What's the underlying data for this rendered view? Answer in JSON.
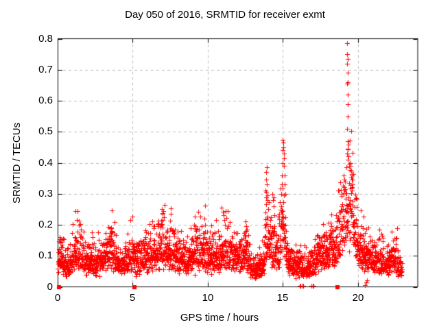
{
  "chart_data": {
    "type": "scatter",
    "title": "Day 050 of 2016, SRMTID for receiver exmt",
    "xlabel": "GPS time / hours",
    "ylabel": "SRMTID / TECUs",
    "xlim": [
      0,
      24
    ],
    "ylim": [
      0,
      0.8
    ],
    "x_ticks": [
      0,
      5,
      10,
      15,
      20
    ],
    "x_tick_labels": [
      "0",
      "5",
      "10",
      "15",
      "20"
    ],
    "y_ticks": [
      0,
      0.1,
      0.2,
      0.3,
      0.4,
      0.5,
      0.6,
      0.7,
      0.8
    ],
    "y_tick_labels": [
      "0",
      "0.1",
      "0.2",
      "0.3",
      "0.4",
      "0.5",
      "0.6",
      "0.7",
      "0.8"
    ],
    "grid": true,
    "legend": null,
    "marker": "plus",
    "marker_color": "#ff0000",
    "grid_color": "#bbbbbb",
    "axis_color": "#000000",
    "background_color": "#ffffff",
    "render_model": {
      "comment": "dense 30s-sampled series estimated as mean profile + lognormal scatter",
      "samples_per_hour": 120,
      "time_range": [
        0.02,
        22.92
      ],
      "noise_sigma": 0.68,
      "seed": 50,
      "value_clamp": [
        0.015,
        0.82
      ]
    },
    "mean_profile": [
      [
        0.0,
        0.085
      ],
      [
        0.3,
        0.095
      ],
      [
        0.6,
        0.065
      ],
      [
        0.9,
        0.08
      ],
      [
        1.2,
        0.105
      ],
      [
        1.5,
        0.1
      ],
      [
        1.8,
        0.09
      ],
      [
        2.1,
        0.075
      ],
      [
        2.4,
        0.075
      ],
      [
        2.7,
        0.085
      ],
      [
        3.0,
        0.095
      ],
      [
        3.3,
        0.105
      ],
      [
        3.6,
        0.12
      ],
      [
        3.9,
        0.09
      ],
      [
        4.2,
        0.07
      ],
      [
        4.5,
        0.085
      ],
      [
        4.8,
        0.095
      ],
      [
        5.1,
        0.1
      ],
      [
        5.4,
        0.095
      ],
      [
        5.7,
        0.1
      ],
      [
        6.0,
        0.09
      ],
      [
        6.3,
        0.095
      ],
      [
        6.6,
        0.1
      ],
      [
        6.95,
        0.125
      ],
      [
        7.3,
        0.12
      ],
      [
        7.6,
        0.11
      ],
      [
        7.9,
        0.1
      ],
      [
        8.2,
        0.09
      ],
      [
        8.5,
        0.085
      ],
      [
        8.8,
        0.09
      ],
      [
        9.1,
        0.11
      ],
      [
        9.4,
        0.1
      ],
      [
        9.8,
        0.12
      ],
      [
        10.1,
        0.095
      ],
      [
        10.4,
        0.09
      ],
      [
        10.7,
        0.1
      ],
      [
        11.1,
        0.125
      ],
      [
        11.4,
        0.1
      ],
      [
        11.7,
        0.09
      ],
      [
        12.0,
        0.095
      ],
      [
        12.3,
        0.1
      ],
      [
        12.55,
        0.115
      ],
      [
        12.8,
        0.075
      ],
      [
        13.1,
        0.06
      ],
      [
        13.4,
        0.055
      ],
      [
        13.7,
        0.08
      ],
      [
        13.85,
        0.16
      ],
      [
        14.0,
        0.15
      ],
      [
        14.2,
        0.12
      ],
      [
        14.35,
        0.14
      ],
      [
        14.55,
        0.1
      ],
      [
        14.75,
        0.12
      ],
      [
        14.95,
        0.2
      ],
      [
        15.05,
        0.22
      ],
      [
        15.2,
        0.1
      ],
      [
        15.45,
        0.08
      ],
      [
        15.7,
        0.07
      ],
      [
        16.0,
        0.065
      ],
      [
        16.3,
        0.06
      ],
      [
        16.6,
        0.065
      ],
      [
        16.9,
        0.07
      ],
      [
        17.2,
        0.08
      ],
      [
        17.5,
        0.1
      ],
      [
        17.8,
        0.11
      ],
      [
        18.1,
        0.12
      ],
      [
        18.4,
        0.13
      ],
      [
        18.7,
        0.16
      ],
      [
        18.95,
        0.2
      ],
      [
        19.15,
        0.24
      ],
      [
        19.35,
        0.27
      ],
      [
        19.55,
        0.26
      ],
      [
        19.75,
        0.2
      ],
      [
        19.95,
        0.14
      ],
      [
        20.2,
        0.11
      ],
      [
        20.5,
        0.095
      ],
      [
        20.8,
        0.09
      ],
      [
        21.1,
        0.08
      ],
      [
        21.4,
        0.085
      ],
      [
        21.7,
        0.075
      ],
      [
        22.0,
        0.08
      ],
      [
        22.3,
        0.085
      ],
      [
        22.6,
        0.075
      ],
      [
        22.9,
        0.06
      ]
    ],
    "outlier_points": [
      [
        0.35,
        0.155
      ],
      [
        1.15,
        0.16
      ],
      [
        1.22,
        0.15
      ],
      [
        3.55,
        0.19
      ],
      [
        3.62,
        0.175
      ],
      [
        6.9,
        0.2
      ],
      [
        6.93,
        0.25
      ],
      [
        6.97,
        0.235
      ],
      [
        7.0,
        0.215
      ],
      [
        7.3,
        0.18
      ],
      [
        9.1,
        0.2
      ],
      [
        9.17,
        0.185
      ],
      [
        9.78,
        0.22
      ],
      [
        9.82,
        0.2
      ],
      [
        11.05,
        0.23
      ],
      [
        11.1,
        0.215
      ],
      [
        11.15,
        0.2
      ],
      [
        11.3,
        0.19
      ],
      [
        12.5,
        0.21
      ],
      [
        12.55,
        0.195
      ],
      [
        12.6,
        0.185
      ],
      [
        13.8,
        0.2
      ],
      [
        13.83,
        0.24
      ],
      [
        13.86,
        0.31
      ],
      [
        13.88,
        0.345
      ],
      [
        13.9,
        0.37
      ],
      [
        13.92,
        0.385
      ],
      [
        13.95,
        0.33
      ],
      [
        13.98,
        0.28
      ],
      [
        14.02,
        0.25
      ],
      [
        14.3,
        0.3
      ],
      [
        14.33,
        0.28
      ],
      [
        14.38,
        0.26
      ],
      [
        14.42,
        0.23
      ],
      [
        14.9,
        0.3
      ],
      [
        14.93,
        0.33
      ],
      [
        14.95,
        0.36
      ],
      [
        14.97,
        0.4
      ],
      [
        14.99,
        0.44
      ],
      [
        15.0,
        0.475
      ],
      [
        15.02,
        0.465
      ],
      [
        15.03,
        0.45
      ],
      [
        15.05,
        0.43
      ],
      [
        15.07,
        0.415
      ],
      [
        15.09,
        0.39
      ],
      [
        15.11,
        0.36
      ],
      [
        15.13,
        0.33
      ],
      [
        15.16,
        0.3
      ],
      [
        16.12,
        0.003
      ],
      [
        16.18,
        0.003
      ],
      [
        16.3,
        0.003
      ],
      [
        16.36,
        0.003
      ],
      [
        16.9,
        0.003
      ],
      [
        16.97,
        0.003
      ],
      [
        17.04,
        0.003
      ],
      [
        19.26,
        0.785
      ],
      [
        19.28,
        0.75
      ],
      [
        19.3,
        0.735
      ],
      [
        19.29,
        0.72
      ],
      [
        19.31,
        0.69
      ],
      [
        19.33,
        0.66
      ],
      [
        19.27,
        0.655
      ],
      [
        19.32,
        0.62
      ],
      [
        19.3,
        0.55
      ],
      [
        19.28,
        0.51
      ],
      [
        19.33,
        0.47
      ],
      [
        19.31,
        0.445
      ],
      [
        19.29,
        0.43
      ],
      [
        19.34,
        0.41
      ],
      [
        19.5,
        0.4
      ],
      [
        19.52,
        0.39
      ],
      [
        19.55,
        0.375
      ],
      [
        19.58,
        0.36
      ],
      [
        19.6,
        0.345
      ],
      [
        19.62,
        0.33
      ],
      [
        20.45,
        0.006
      ],
      [
        20.55,
        0.015
      ],
      [
        20.6,
        0.02
      ],
      [
        22.35,
        0.15
      ]
    ],
    "zero_square_points": [
      0.07,
      5.12,
      18.63
    ]
  }
}
